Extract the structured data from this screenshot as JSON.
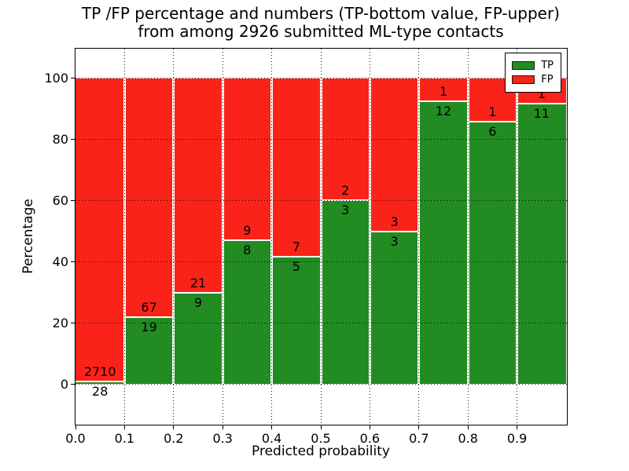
{
  "figure": {
    "title_line1": "TP /FP percentage and numbers (TP-bottom value, FP-upper)",
    "title_line2": "from among 2926 submitted ML-type contacts",
    "xlabel": "Predicted probability",
    "ylabel": "Percentage"
  },
  "legend": {
    "position": "upper right",
    "items": [
      {
        "label": "TP",
        "color": "#228B22"
      },
      {
        "label": "FP",
        "color": "#FA231A"
      }
    ]
  },
  "chart_data": {
    "type": "bar",
    "subtype": "stacked-percentage-histogram",
    "title": "TP /FP percentage and numbers (TP-bottom value, FP-upper)\nfrom among 2926 submitted ML-type contacts",
    "xlabel": "Predicted probability",
    "ylabel": "Percentage",
    "total_contacts": 2926,
    "bin_width": 0.1,
    "bin_starts": [
      0.0,
      0.1,
      0.2,
      0.3,
      0.4,
      0.5,
      0.6,
      0.7,
      0.8,
      0.9
    ],
    "x_tick_labels": [
      "0.0",
      "0.1",
      "0.2",
      "0.3",
      "0.4",
      "0.5",
      "0.6",
      "0.7",
      "0.8",
      "0.9"
    ],
    "y_ticks": [
      0,
      20,
      40,
      60,
      80,
      100
    ],
    "y_tick_labels": [
      "0",
      "20",
      "40",
      "60",
      "80",
      "100"
    ],
    "xlim": [
      0.0,
      1.0
    ],
    "ylim": [
      -12.8,
      109.5
    ],
    "grid": "dotted",
    "bar_edge_color": "#ffffff",
    "series": [
      {
        "name": "TP",
        "color": "#228B22",
        "counts": [
          28,
          19,
          9,
          8,
          5,
          3,
          3,
          12,
          6,
          11
        ]
      },
      {
        "name": "FP",
        "color": "#FA231A",
        "counts": [
          2710,
          67,
          21,
          9,
          7,
          2,
          3,
          1,
          1,
          1
        ]
      }
    ],
    "tp_percent_of_bin": [
      1.02,
      22.09,
      30.0,
      47.06,
      41.67,
      60.0,
      50.0,
      92.31,
      85.71,
      91.67
    ],
    "annotation_note": "FP count printed above the TP/FP boundary, TP count printed below it"
  }
}
